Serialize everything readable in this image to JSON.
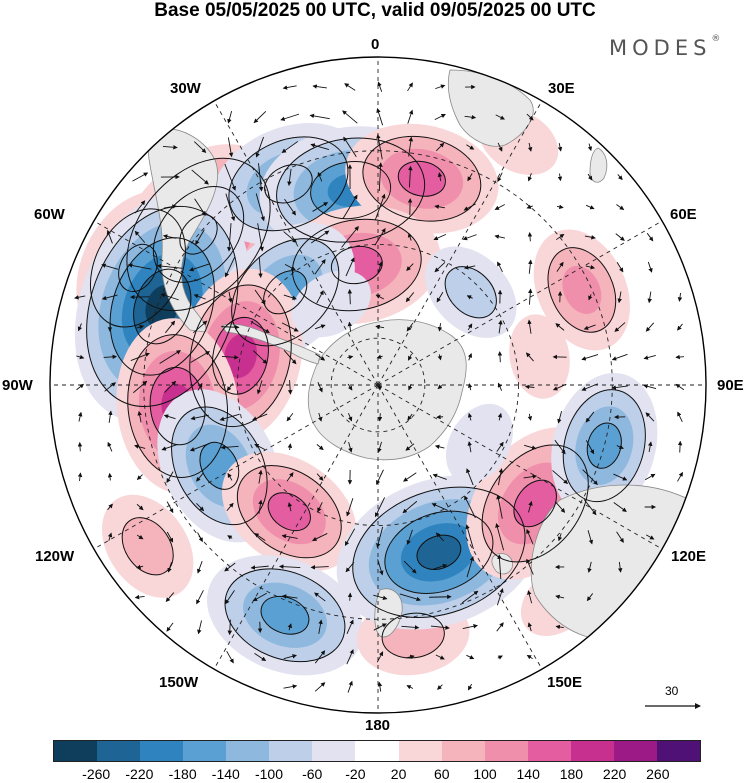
{
  "title": "Base 05/05/2025 00 UTC, valid 09/05/2025 00 UTC",
  "brand": "MODES",
  "brand_mark": "®",
  "lon_labels": {
    "l0": "0",
    "l30e": "30E",
    "l60e": "60E",
    "l90e": "90E",
    "l120e": "120E",
    "l150e": "150E",
    "l180": "180",
    "l150w": "150W",
    "l120w": "120W",
    "l90w": "90W",
    "l60w": "60W",
    "l30w": "30W"
  },
  "reference_vector_label": "30",
  "legend": {
    "colors": [
      "#0f3d5c",
      "#1e6494",
      "#2f84bf",
      "#5aa0d2",
      "#8fb8de",
      "#bdcfe9",
      "#e2e2f0",
      "#ffffff",
      "#f9d6d8",
      "#f5b3bb",
      "#ef8fac",
      "#e45da0",
      "#c8308f",
      "#9b1a85",
      "#4f1176"
    ],
    "tick_labels": [
      "-260",
      "-220",
      "-180",
      "-140",
      "-100",
      "-60",
      "-20",
      "20",
      "60",
      "100",
      "140",
      "180",
      "220",
      "260"
    ]
  },
  "anomaly_cells": [
    {
      "lon": -50,
      "lat": -40,
      "v": 210
    },
    {
      "lon": -64,
      "lat": -33,
      "v": 150
    },
    {
      "lon": -24,
      "lat": -43,
      "v": -150
    },
    {
      "lon": -8,
      "lat": -48,
      "v": -180
    },
    {
      "lon": 12,
      "lat": -45,
      "v": 140
    },
    {
      "lon": -10,
      "lat": -64,
      "v": 160
    },
    {
      "lon": -70,
      "lat": -41,
      "v": -260
    },
    {
      "lon": -45,
      "lat": -62,
      "v": -150
    },
    {
      "lon": -78,
      "lat": -60,
      "v": 170
    },
    {
      "lon": -96,
      "lat": -47,
      "v": 170
    },
    {
      "lon": -117,
      "lat": -52,
      "v": -150
    },
    {
      "lon": -145,
      "lat": -57,
      "v": 130
    },
    {
      "lon": -125,
      "lat": -30,
      "v": 80
    },
    {
      "lon": -158,
      "lat": -37,
      "v": -150
    },
    {
      "lon": 172,
      "lat": -36,
      "v": 80
    },
    {
      "lon": 160,
      "lat": -52,
      "v": -220
    },
    {
      "lon": 127,
      "lat": -48,
      "v": 160
    },
    {
      "lon": 105,
      "lat": -40,
      "v": -130
    },
    {
      "lon": 65,
      "lat": -42,
      "v": 100
    },
    {
      "lon": 45,
      "lat": -62,
      "v": -70
    },
    {
      "lon": 30,
      "lat": -30,
      "v": 40
    },
    {
      "lon": 140,
      "lat": -30,
      "v": 40
    },
    {
      "lon": 80,
      "lat": -55,
      "v": 40
    },
    {
      "lon": -30,
      "lat": -70,
      "v": -40
    },
    {
      "lon": 120,
      "lat": -65,
      "v": -40
    }
  ]
}
